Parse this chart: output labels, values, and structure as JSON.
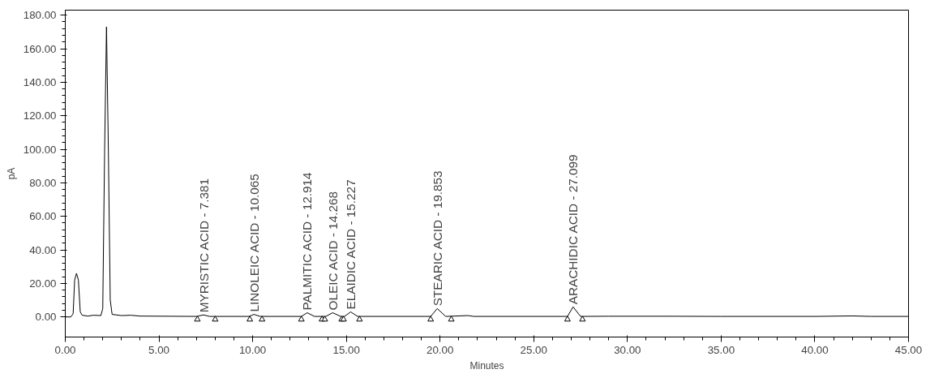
{
  "chart_data": {
    "type": "line",
    "xlabel": "Minutes",
    "ylabel": "pA",
    "xlim": [
      0,
      45
    ],
    "ylim": [
      -12,
      183
    ],
    "xticks": [
      {
        "value": 0,
        "label": "0.00"
      },
      {
        "value": 5,
        "label": "5.00"
      },
      {
        "value": 10,
        "label": "10.00"
      },
      {
        "value": 15,
        "label": "15.00"
      },
      {
        "value": 20,
        "label": "20.00"
      },
      {
        "value": 25,
        "label": "25.00"
      },
      {
        "value": 30,
        "label": "30.00"
      },
      {
        "value": 35,
        "label": "35.00"
      },
      {
        "value": 40,
        "label": "40.00"
      },
      {
        "value": 45,
        "label": "45.00"
      }
    ],
    "yticks": [
      {
        "value": 0,
        "label": "0.00"
      },
      {
        "value": 20,
        "label": "20.00"
      },
      {
        "value": 40,
        "label": "40.00"
      },
      {
        "value": 60,
        "label": "60.00"
      },
      {
        "value": 80,
        "label": "80.00"
      },
      {
        "value": 100,
        "label": "100.00"
      },
      {
        "value": 120,
        "label": "120.00"
      },
      {
        "value": 140,
        "label": "140.00"
      },
      {
        "value": 160,
        "label": "160.00"
      },
      {
        "value": 180,
        "label": "180.00"
      }
    ],
    "grid": false,
    "series": [
      {
        "color": "#000000",
        "x": [
          0,
          0.3,
          0.42,
          0.5,
          0.6,
          0.7,
          0.8,
          0.9,
          1.2,
          1.5,
          1.9,
          2.0,
          2.1,
          2.2,
          2.3,
          2.4,
          2.5,
          3.0,
          3.5,
          4.0,
          7.0,
          7.38,
          7.7,
          9.8,
          10.07,
          10.4,
          12.6,
          12.91,
          13.3,
          13.9,
          14.27,
          14.7,
          14.9,
          15.23,
          15.6,
          19.5,
          19.85,
          20.3,
          21.5,
          21.8,
          26.8,
          27.1,
          27.5,
          29,
          32,
          35,
          40,
          42,
          43,
          45
        ],
        "values": [
          0,
          0,
          2,
          22,
          26,
          22,
          3,
          1,
          0.5,
          1,
          0.8,
          5,
          100,
          173,
          100,
          10,
          1.5,
          0.8,
          1,
          0.5,
          0.3,
          1.2,
          0.3,
          0.3,
          1.5,
          0.3,
          0.3,
          2.5,
          0.3,
          0.3,
          2.5,
          0.3,
          0.3,
          3,
          0.3,
          0.3,
          5,
          0.3,
          0.8,
          0.3,
          0.3,
          6,
          0.3,
          0.4,
          0.4,
          0.3,
          0.3,
          0.6,
          0.3,
          0.3
        ]
      },
      {
        "type": "scatter",
        "marker": "triangle",
        "color": "#000000",
        "x": [
          7.05,
          8.0,
          9.85,
          10.5,
          12.6,
          13.7,
          13.85,
          14.75,
          14.85,
          15.7,
          19.5,
          20.6,
          26.8,
          27.6
        ],
        "values": [
          -1.5,
          -1.5,
          -1.5,
          -1.5,
          -1.5,
          -1.5,
          -1.5,
          -1.5,
          -1.5,
          -1.5,
          -1.5,
          -1.5,
          -1.5,
          -1.5
        ]
      }
    ],
    "annotations": [
      {
        "text": "MYRISTIC ACID - 7.381",
        "x": 7.381,
        "y": 1.2
      },
      {
        "text": "LINOLEIC ACID - 10.065",
        "x": 10.065,
        "y": 1.5
      },
      {
        "text": "PALMITIC ACID - 12.914",
        "x": 12.914,
        "y": 2.5
      },
      {
        "text": "OLEIC ACID - 14.268",
        "x": 14.268,
        "y": 2.5
      },
      {
        "text": "ELAIDIC ACID - 15.227",
        "x": 15.227,
        "y": 3
      },
      {
        "text": "STEARIC ACID - 19.853",
        "x": 19.853,
        "y": 5
      },
      {
        "text": "ARACHIDIC ACID - 27.099",
        "x": 27.099,
        "y": 6
      }
    ]
  }
}
